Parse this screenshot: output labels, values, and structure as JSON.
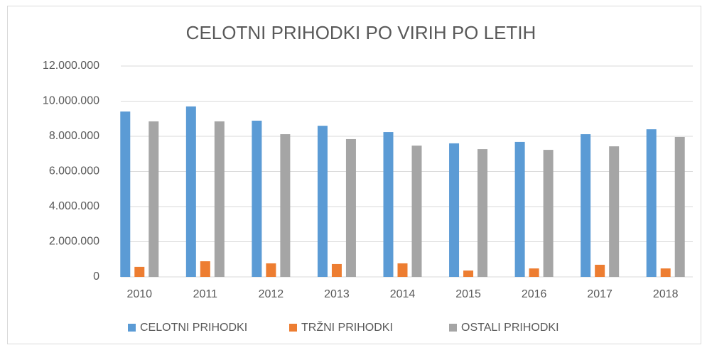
{
  "chart_data": {
    "type": "bar",
    "title": "CELOTNI PRIHODKI PO VIRIH PO LETIH",
    "categories": [
      "2010",
      "2011",
      "2012",
      "2013",
      "2014",
      "2015",
      "2016",
      "2017",
      "2018"
    ],
    "series": [
      {
        "name": "CELOTNI PRIHODKI",
        "color": "#5b9bd5",
        "values": [
          9410000,
          9700000,
          8890000,
          8600000,
          8240000,
          7600000,
          7680000,
          8120000,
          8400000
        ]
      },
      {
        "name": "TRŽNI PRIHODKI",
        "color": "#ed7d31",
        "values": [
          570000,
          890000,
          770000,
          730000,
          770000,
          360000,
          480000,
          690000,
          480000
        ]
      },
      {
        "name": "OSTALI PRIHODKI",
        "color": "#a5a5a5",
        "values": [
          8850000,
          8850000,
          8120000,
          7840000,
          7470000,
          7270000,
          7230000,
          7430000,
          7960000
        ]
      }
    ],
    "ylim": [
      0,
      12000000
    ],
    "yticks": [
      0,
      {
        "value": 2000000,
        "label": "2.000.000"
      },
      {
        "value": 4000000,
        "label": "4.000.000"
      },
      {
        "value": 6000000,
        "label": "6.000.000"
      },
      {
        "value": 8000000,
        "label": "8.000.000"
      },
      {
        "value": 10000000,
        "label": "10.000.000"
      },
      {
        "value": 12000000,
        "label": "12.000.000"
      }
    ],
    "grid": true,
    "legend": "bottom"
  }
}
